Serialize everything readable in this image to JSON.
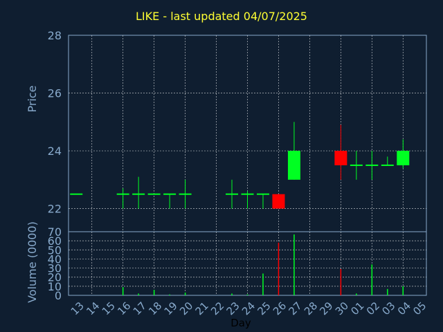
{
  "title": "LIKE - last updated 04/07/2025",
  "colors": {
    "background": "#0f1e30",
    "axis_text": "#88aacc",
    "grid": "#ffffff",
    "up": "#00ff22",
    "down": "#ff0000",
    "title": "#ffff33"
  },
  "chart_data": [
    {
      "type": "candlestick",
      "ylabel": "Price",
      "ylim": [
        21.2,
        28
      ],
      "yticks": [
        22,
        24,
        26,
        28
      ],
      "grid": true,
      "categories": [
        "13",
        "14",
        "15",
        "16",
        "17",
        "18",
        "19",
        "20",
        "21",
        "22",
        "23",
        "24",
        "25",
        "26",
        "27",
        "28",
        "29",
        "30",
        "01",
        "02",
        "03",
        "04",
        "05"
      ],
      "candles": [
        {
          "x": "13",
          "open": 22.5,
          "high": 22.5,
          "low": 22.5,
          "close": 22.5,
          "dir": "up"
        },
        {
          "x": "16",
          "open": 22.5,
          "high": 22.7,
          "low": 22.0,
          "close": 22.5,
          "dir": "up"
        },
        {
          "x": "17",
          "open": 22.5,
          "high": 23.1,
          "low": 22.0,
          "close": 22.5,
          "dir": "up"
        },
        {
          "x": "18",
          "open": 22.5,
          "high": 22.5,
          "low": 22.5,
          "close": 22.5,
          "dir": "up"
        },
        {
          "x": "19",
          "open": 22.5,
          "high": 22.5,
          "low": 22.0,
          "close": 22.5,
          "dir": "up"
        },
        {
          "x": "20",
          "open": 22.5,
          "high": 23.0,
          "low": 22.0,
          "close": 22.5,
          "dir": "up"
        },
        {
          "x": "23",
          "open": 22.5,
          "high": 23.0,
          "low": 22.0,
          "close": 22.5,
          "dir": "up"
        },
        {
          "x": "24",
          "open": 22.5,
          "high": 22.6,
          "low": 22.0,
          "close": 22.5,
          "dir": "up"
        },
        {
          "x": "25",
          "open": 22.5,
          "high": 22.5,
          "low": 22.0,
          "close": 22.5,
          "dir": "up"
        },
        {
          "x": "26",
          "open": 22.5,
          "high": 22.5,
          "low": 22.0,
          "close": 22.0,
          "dir": "down"
        },
        {
          "x": "27",
          "open": 23.0,
          "high": 25.0,
          "low": 23.0,
          "close": 24.0,
          "dir": "up"
        },
        {
          "x": "30",
          "open": 24.0,
          "high": 24.9,
          "low": 23.0,
          "close": 23.5,
          "dir": "down"
        },
        {
          "x": "01",
          "open": 23.5,
          "high": 24.0,
          "low": 23.0,
          "close": 23.5,
          "dir": "up"
        },
        {
          "x": "02",
          "open": 23.5,
          "high": 24.0,
          "low": 23.0,
          "close": 23.5,
          "dir": "up"
        },
        {
          "x": "03",
          "open": 23.5,
          "high": 23.8,
          "low": 23.5,
          "close": 23.5,
          "dir": "up"
        },
        {
          "x": "04",
          "open": 23.5,
          "high": 24.4,
          "low": 23.4,
          "close": 24.0,
          "dir": "up"
        }
      ]
    },
    {
      "type": "bar",
      "ylabel": "Volume (0000)",
      "xlabel": "Day",
      "ylim": [
        0,
        70
      ],
      "yticks": [
        0,
        10,
        20,
        30,
        40,
        50,
        60,
        70
      ],
      "grid": true,
      "categories": [
        "13",
        "14",
        "15",
        "16",
        "17",
        "18",
        "19",
        "20",
        "21",
        "22",
        "23",
        "24",
        "25",
        "26",
        "27",
        "28",
        "29",
        "30",
        "01",
        "02",
        "03",
        "04",
        "05"
      ],
      "bars": [
        {
          "x": "16",
          "value": 9,
          "dir": "up"
        },
        {
          "x": "17",
          "value": 2,
          "dir": "up"
        },
        {
          "x": "18",
          "value": 6,
          "dir": "up"
        },
        {
          "x": "19",
          "value": 1,
          "dir": "up"
        },
        {
          "x": "20",
          "value": 3,
          "dir": "up"
        },
        {
          "x": "23",
          "value": 2,
          "dir": "up"
        },
        {
          "x": "24",
          "value": 1,
          "dir": "up"
        },
        {
          "x": "25",
          "value": 24,
          "dir": "up"
        },
        {
          "x": "26",
          "value": 58,
          "dir": "down"
        },
        {
          "x": "27",
          "value": 67,
          "dir": "up"
        },
        {
          "x": "30",
          "value": 29,
          "dir": "down"
        },
        {
          "x": "01",
          "value": 2,
          "dir": "up"
        },
        {
          "x": "02",
          "value": 34,
          "dir": "up"
        },
        {
          "x": "03",
          "value": 7,
          "dir": "up"
        },
        {
          "x": "04",
          "value": 10,
          "dir": "up"
        }
      ]
    }
  ]
}
